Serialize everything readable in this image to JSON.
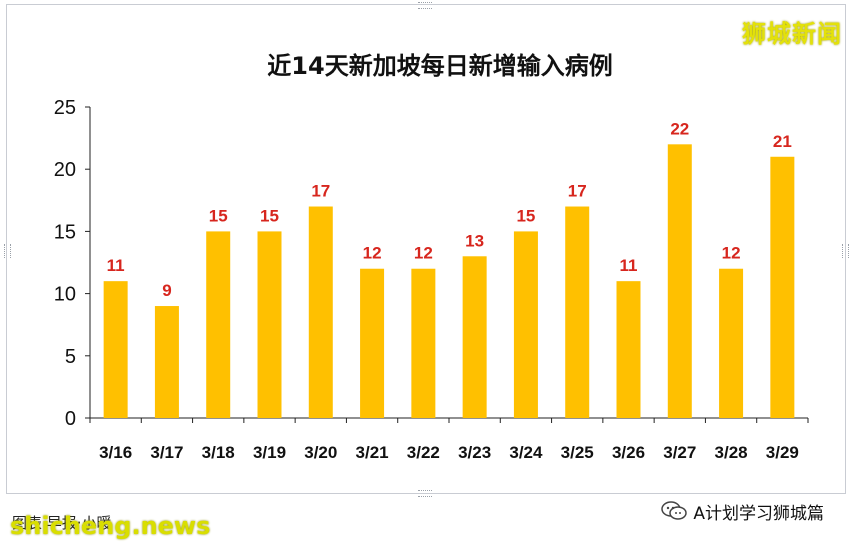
{
  "watermark": "狮城新闻",
  "footer": {
    "source_text": "图表·早报·小暖",
    "site_mark": "shicheng.news",
    "wechat_label": "A计划学习狮城篇",
    "wechat_icon": "wechat-icon"
  },
  "colors": {
    "bar": "#FFC000",
    "label": "#D7261E",
    "axis": "#222222",
    "grid": "#d9d9d9"
  },
  "chart_data": {
    "type": "bar",
    "title": "近14天新加坡每日新增输入病例",
    "xlabel": "",
    "ylabel": "",
    "categories": [
      "3/16",
      "3/17",
      "3/18",
      "3/19",
      "3/20",
      "3/21",
      "3/22",
      "3/23",
      "3/24",
      "3/25",
      "3/26",
      "3/27",
      "3/28",
      "3/29"
    ],
    "values": [
      11,
      9,
      15,
      15,
      17,
      12,
      12,
      13,
      15,
      17,
      11,
      22,
      12,
      21
    ],
    "ylim": [
      0,
      25
    ],
    "yticks": [
      0,
      5,
      10,
      15,
      20,
      25
    ],
    "data_labels": true,
    "grid": false,
    "legend": "none"
  }
}
